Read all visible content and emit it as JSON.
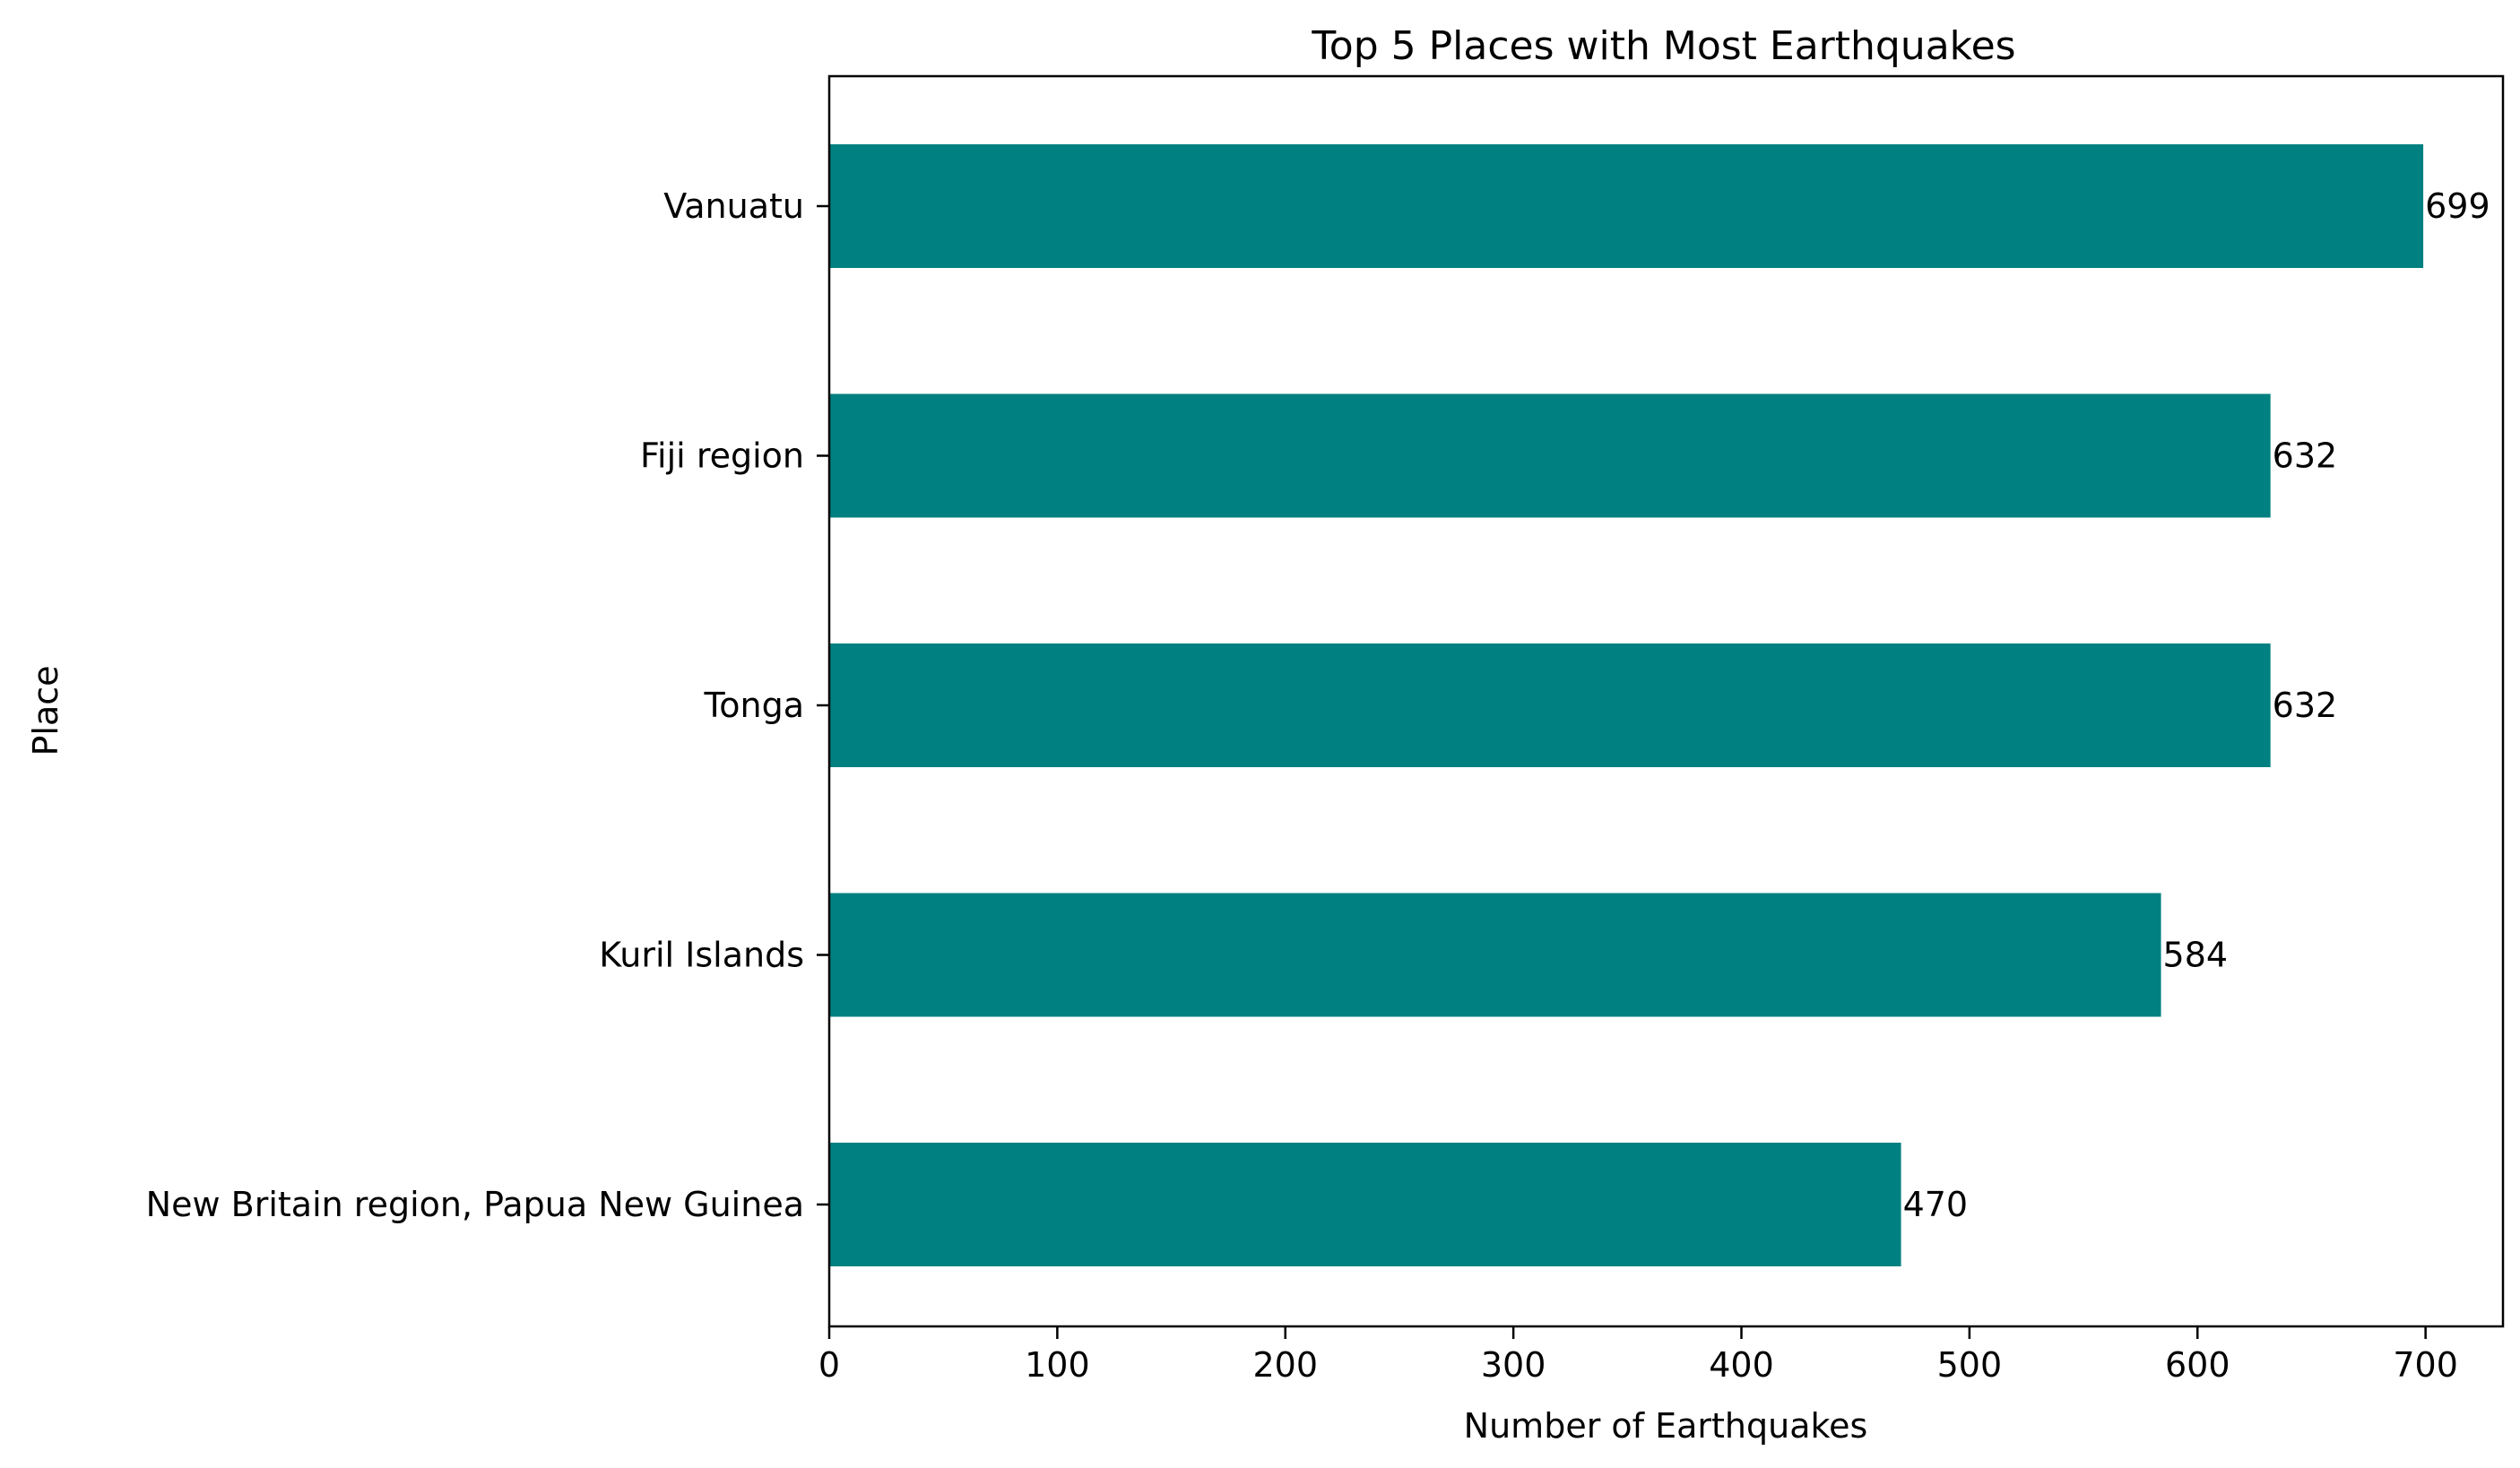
{
  "chart_data": {
    "type": "bar",
    "orientation": "horizontal",
    "title": "Top 5 Places with Most Earthquakes",
    "xlabel": "Number of Earthquakes",
    "ylabel": "Place",
    "categories": [
      "Vanuatu",
      "Fiji region",
      "Tonga",
      "Kuril Islands",
      "New Britain region, Papua New Guinea"
    ],
    "values": [
      699,
      632,
      632,
      584,
      470
    ],
    "data_labels": [
      "699",
      "632",
      "632",
      "584",
      "470"
    ],
    "xlim": [
      0,
      733.95
    ],
    "xticks": [
      0,
      100,
      200,
      300,
      400,
      500,
      600,
      700
    ],
    "xtick_labels": [
      "0",
      "100",
      "200",
      "300",
      "400",
      "500",
      "600",
      "700"
    ],
    "bar_color": "#008080",
    "grid": false,
    "legend": "none"
  }
}
